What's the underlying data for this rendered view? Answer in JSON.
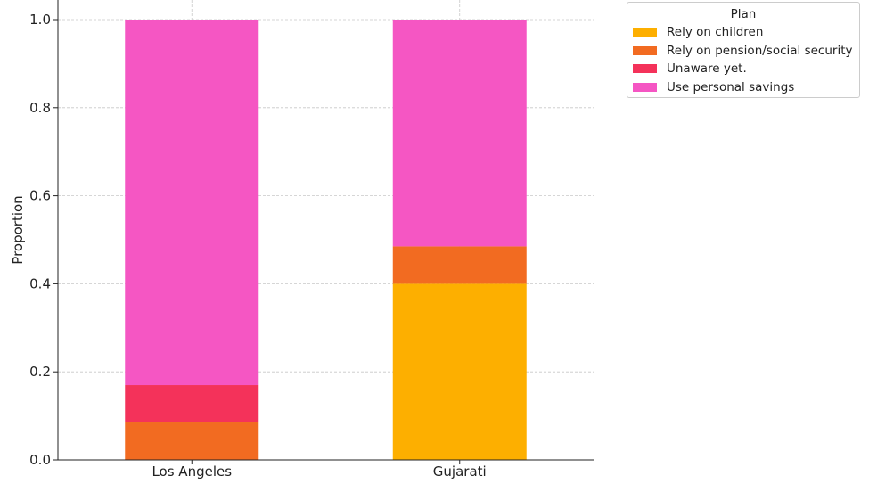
{
  "chart_data": {
    "type": "bar",
    "stacked": true,
    "categories": [
      "Los Angeles",
      "Gujarati"
    ],
    "series": [
      {
        "name": "Rely on children",
        "color": "#FDAF00",
        "values": [
          0.0,
          0.4
        ]
      },
      {
        "name": "Rely on pension/social security",
        "color": "#F26B21",
        "values": [
          0.085,
          0.085
        ]
      },
      {
        "name": "Unaware yet.",
        "color": "#F4325A",
        "values": [
          0.085,
          0.0
        ]
      },
      {
        "name": "Use personal savings",
        "color": "#F556C3",
        "values": [
          0.83,
          0.515
        ]
      }
    ],
    "title": "",
    "xlabel": "",
    "ylabel": "Proportion",
    "ylim": [
      0,
      1.0
    ],
    "yticks": [
      "0.0",
      "0.2",
      "0.4",
      "0.6",
      "0.8",
      "1.0"
    ],
    "grid": true,
    "legend": {
      "title": "Plan",
      "placement": "outside-top-right"
    }
  }
}
